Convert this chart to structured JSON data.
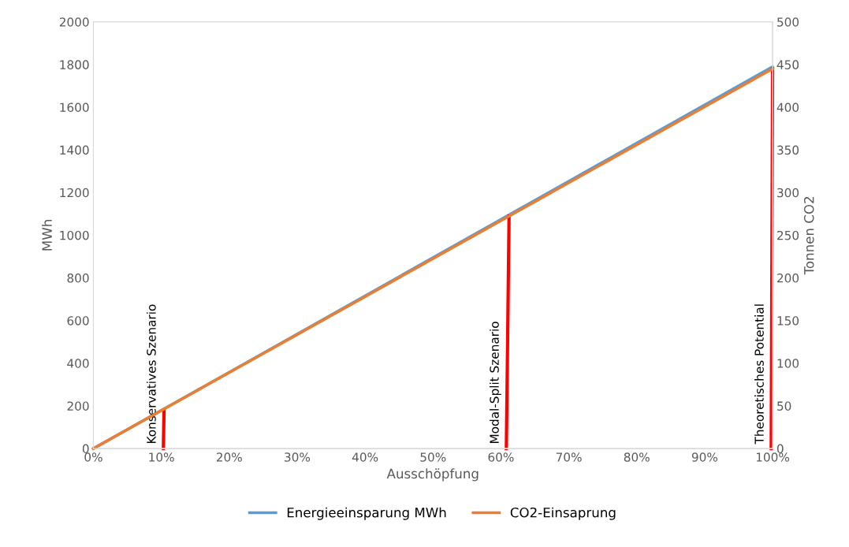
{
  "chart_data": {
    "type": "line",
    "xlabel": "Ausschöpfung",
    "ylabel": "MWh",
    "y2label": "Tonnen CO2",
    "xlim": [
      0,
      100
    ],
    "xticks": [
      {
        "value": 0,
        "label": "0%"
      },
      {
        "value": 10,
        "label": "10%"
      },
      {
        "value": 20,
        "label": "20%"
      },
      {
        "value": 30,
        "label": "30%"
      },
      {
        "value": 40,
        "label": "40%"
      },
      {
        "value": 50,
        "label": "50%"
      },
      {
        "value": 60,
        "label": "60%"
      },
      {
        "value": 70,
        "label": "70%"
      },
      {
        "value": 80,
        "label": "80%"
      },
      {
        "value": 90,
        "label": "90%"
      },
      {
        "value": 100,
        "label": "100%"
      }
    ],
    "ylim": [
      0,
      2000
    ],
    "yticks": [
      0,
      200,
      400,
      600,
      800,
      1000,
      1200,
      1400,
      1600,
      1800,
      2000
    ],
    "y2lim": [
      0,
      500
    ],
    "y2ticks": [
      0,
      50,
      100,
      150,
      200,
      250,
      300,
      350,
      400,
      450,
      500
    ],
    "grid": false,
    "legend": "bottom",
    "marker": "none",
    "line_style": "solid",
    "series": [
      {
        "name": "Energieeinsparung MWh",
        "color": "#5b9bd5",
        "x": [
          0,
          100
        ],
        "values": [
          0,
          1790
        ]
      },
      {
        "name": "CO2-Einsaprung",
        "color": "#ed7d31",
        "x": [
          0,
          100
        ],
        "values": [
          0,
          445
        ],
        "axis": "y2"
      },
      {
        "color": "#ff0000",
        "x": [
          10.3,
          10.4
        ],
        "values": [
          0,
          180
        ]
      },
      {
        "color": "#ff0000",
        "x": [
          60.8,
          61.2
        ],
        "values": [
          0,
          1090
        ]
      },
      {
        "color": "#ff0000",
        "x": [
          99.8,
          100
        ],
        "values": [
          0,
          1780
        ]
      }
    ],
    "annotations": [
      "Konservatives Szenario",
      "Modal-Split Szenario",
      "Theoretisches Potential"
    ]
  }
}
